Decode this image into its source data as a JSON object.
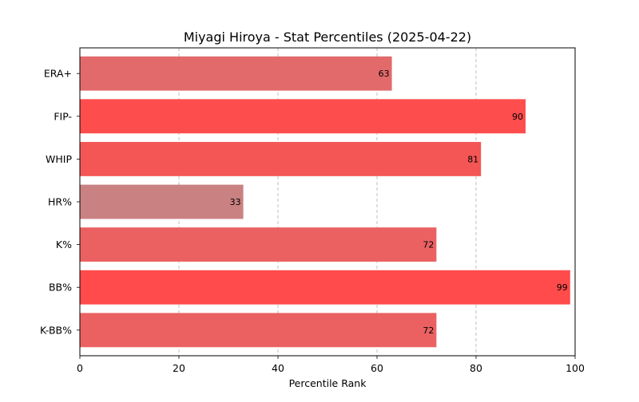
{
  "chart_data": {
    "type": "bar",
    "orientation": "horizontal",
    "title": "Miyagi Hiroya - Stat Percentiles (2025-04-22)",
    "xlabel": "Percentile Rank",
    "ylabel": "",
    "xlim": [
      0,
      100
    ],
    "xticks": [
      "0",
      "20",
      "40",
      "60",
      "80",
      "100"
    ],
    "grid": "x-dashed",
    "categories": [
      "ERA+",
      "FIP-",
      "WHIP",
      "HR%",
      "K%",
      "BB%",
      "K-BB%"
    ],
    "values": [
      63,
      90,
      81,
      33,
      72,
      99,
      72
    ],
    "colors": [
      "#e26a6a",
      "#fe4d4d",
      "#f45656",
      "#c98181",
      "#eb6161",
      "#ff4b4b",
      "#eb6161"
    ],
    "data_labels": [
      "63",
      "90",
      "81",
      "33",
      "72",
      "99",
      "72"
    ]
  }
}
